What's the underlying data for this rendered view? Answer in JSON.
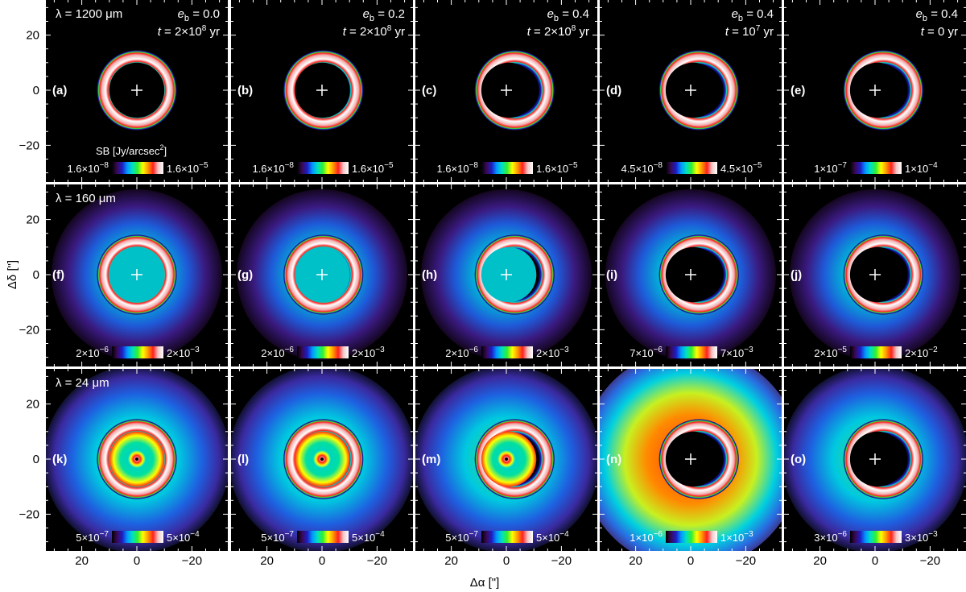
{
  "chart_data": {
    "type": "heatmap",
    "xlabel": "Δα [\"]",
    "ylabel": "Δδ [\"]",
    "xlim": [
      34,
      -34
    ],
    "ylim": [
      -34,
      34
    ],
    "x_ticks": [
      "20",
      "0",
      "−20"
    ],
    "y_ticks": [
      "20",
      "0",
      "−20"
    ],
    "colorbar_title": "SB [Jy/arcsec²]",
    "colormap": [
      "#000000",
      "#3a0a55",
      "#1d1dc8",
      "#0099ff",
      "#00e0c0",
      "#30f030",
      "#ffff00",
      "#ff9900",
      "#ff2020",
      "#f0c8c8",
      "#ffffff"
    ],
    "rows": [
      {
        "wavelength_label": "λ = 1200 μm"
      },
      {
        "wavelength_label": "λ = 160 μm"
      },
      {
        "wavelength_label": "λ = 24 μm"
      }
    ],
    "columns": [
      {
        "eb_label": "e",
        "eb_sub": "b",
        "eb_value": " = 0.0",
        "t_label": "t",
        "t_value": " = 2×10",
        "t_exp": "8",
        "t_unit": " yr"
      },
      {
        "eb_label": "e",
        "eb_sub": "b",
        "eb_value": " = 0.2",
        "t_label": "t",
        "t_value": " = 2×10",
        "t_exp": "8",
        "t_unit": " yr"
      },
      {
        "eb_label": "e",
        "eb_sub": "b",
        "eb_value": " = 0.4",
        "t_label": "t",
        "t_value": " = 2×10",
        "t_exp": "8",
        "t_unit": " yr"
      },
      {
        "eb_label": "e",
        "eb_sub": "b",
        "eb_value": " = 0.4",
        "t_label": "t",
        "t_value": " = 10",
        "t_exp": "7",
        "t_unit": " yr"
      },
      {
        "eb_label": "e",
        "eb_sub": "b",
        "eb_value": " = 0.4",
        "t_label": "t",
        "t_value": " = 0 yr",
        "t_exp": "",
        "t_unit": ""
      }
    ],
    "panels": [
      {
        "label": "(a)",
        "row": 0,
        "col": 0,
        "cb_min": "1.6×10",
        "cb_min_exp": "−8",
        "cb_max": "1.6×10",
        "cb_max_exp": "−5",
        "ring_outer": 14.5,
        "ring_inner": 10,
        "ring_shift": 0,
        "halo": 0,
        "center_fill": 0,
        "hot_center": false
      },
      {
        "label": "(b)",
        "row": 0,
        "col": 1,
        "cb_min": "1.6×10",
        "cb_min_exp": "−8",
        "cb_max": "1.6×10",
        "cb_max_exp": "−5",
        "ring_outer": 14.5,
        "ring_inner": 10,
        "ring_shift": 0.5,
        "halo": 0,
        "center_fill": 0,
        "hot_center": false
      },
      {
        "label": "(c)",
        "row": 0,
        "col": 2,
        "cb_min": "1.6×10",
        "cb_min_exp": "−8",
        "cb_max": "1.6×10",
        "cb_max_exp": "−5",
        "ring_outer": 14.5,
        "ring_inner": 10,
        "ring_shift": 3,
        "halo": 0,
        "center_fill": 0,
        "hot_center": false
      },
      {
        "label": "(d)",
        "row": 0,
        "col": 3,
        "cb_min": "4.5×10",
        "cb_min_exp": "−8",
        "cb_max": "4.5×10",
        "cb_max_exp": "−5",
        "ring_outer": 14.5,
        "ring_inner": 10,
        "ring_shift": 3,
        "halo": 0,
        "center_fill": 0,
        "hot_center": false
      },
      {
        "label": "(e)",
        "row": 0,
        "col": 4,
        "cb_min": "1×10",
        "cb_min_exp": "−7",
        "cb_max": "1×10",
        "cb_max_exp": "−4",
        "ring_outer": 14.5,
        "ring_inner": 10,
        "ring_shift": 3,
        "halo": 0,
        "center_fill": 0,
        "hot_center": false
      },
      {
        "label": "(f)",
        "row": 1,
        "col": 0,
        "cb_min": "2×10",
        "cb_min_exp": "−6",
        "cb_max": "2×10",
        "cb_max_exp": "−3",
        "ring_outer": 14.5,
        "ring_inner": 10,
        "ring_shift": 0,
        "halo": 1,
        "center_fill": 1,
        "hot_center": false
      },
      {
        "label": "(g)",
        "row": 1,
        "col": 1,
        "cb_min": "2×10",
        "cb_min_exp": "−6",
        "cb_max": "2×10",
        "cb_max_exp": "−3",
        "ring_outer": 14.5,
        "ring_inner": 10,
        "ring_shift": 0.5,
        "halo": 1,
        "center_fill": 1,
        "hot_center": false
      },
      {
        "label": "(h)",
        "row": 1,
        "col": 2,
        "cb_min": "2×10",
        "cb_min_exp": "−6",
        "cb_max": "2×10",
        "cb_max_exp": "−3",
        "ring_outer": 14.5,
        "ring_inner": 10,
        "ring_shift": 3,
        "halo": 1,
        "center_fill": 0.8,
        "hot_center": false
      },
      {
        "label": "(i)",
        "row": 1,
        "col": 3,
        "cb_min": "7×10",
        "cb_min_exp": "−6",
        "cb_max": "7×10",
        "cb_max_exp": "−3",
        "ring_outer": 14.5,
        "ring_inner": 10,
        "ring_shift": 3,
        "halo": 1,
        "center_fill": 0,
        "hot_center": false
      },
      {
        "label": "(j)",
        "row": 1,
        "col": 4,
        "cb_min": "2×10",
        "cb_min_exp": "−5",
        "cb_max": "2×10",
        "cb_max_exp": "−2",
        "ring_outer": 14.5,
        "ring_inner": 10,
        "ring_shift": 3,
        "halo": 1,
        "center_fill": 0,
        "hot_center": false
      },
      {
        "label": "(k)",
        "row": 2,
        "col": 0,
        "cb_min": "5×10",
        "cb_min_exp": "−7",
        "cb_max": "5×10",
        "cb_max_exp": "−4",
        "ring_outer": 14.5,
        "ring_inner": 10,
        "ring_shift": 0,
        "halo": 2,
        "center_fill": 1,
        "hot_center": true
      },
      {
        "label": "(l)",
        "row": 2,
        "col": 1,
        "cb_min": "5×10",
        "cb_min_exp": "−7",
        "cb_max": "5×10",
        "cb_max_exp": "−4",
        "ring_outer": 14.5,
        "ring_inner": 10,
        "ring_shift": 0.5,
        "halo": 2,
        "center_fill": 1,
        "hot_center": true
      },
      {
        "label": "(m)",
        "row": 2,
        "col": 2,
        "cb_min": "5×10",
        "cb_min_exp": "−7",
        "cb_max": "5×10",
        "cb_max_exp": "−4",
        "ring_outer": 14.5,
        "ring_inner": 10,
        "ring_shift": 3,
        "halo": 2,
        "center_fill": 1,
        "hot_center": true
      },
      {
        "label": "(n)",
        "row": 2,
        "col": 3,
        "cb_min": "1×10",
        "cb_min_exp": "−6",
        "cb_max": "1×10",
        "cb_max_exp": "−3",
        "ring_outer": 14.5,
        "ring_inner": 10,
        "ring_shift": 3,
        "halo": 3,
        "center_fill": 0,
        "hot_center": false
      },
      {
        "label": "(o)",
        "row": 2,
        "col": 4,
        "cb_min": "3×10",
        "cb_min_exp": "−6",
        "cb_max": "3×10",
        "cb_max_exp": "−3",
        "ring_outer": 14.5,
        "ring_inner": 10,
        "ring_shift": 3,
        "halo": 2,
        "center_fill": 0,
        "hot_center": false
      }
    ]
  }
}
